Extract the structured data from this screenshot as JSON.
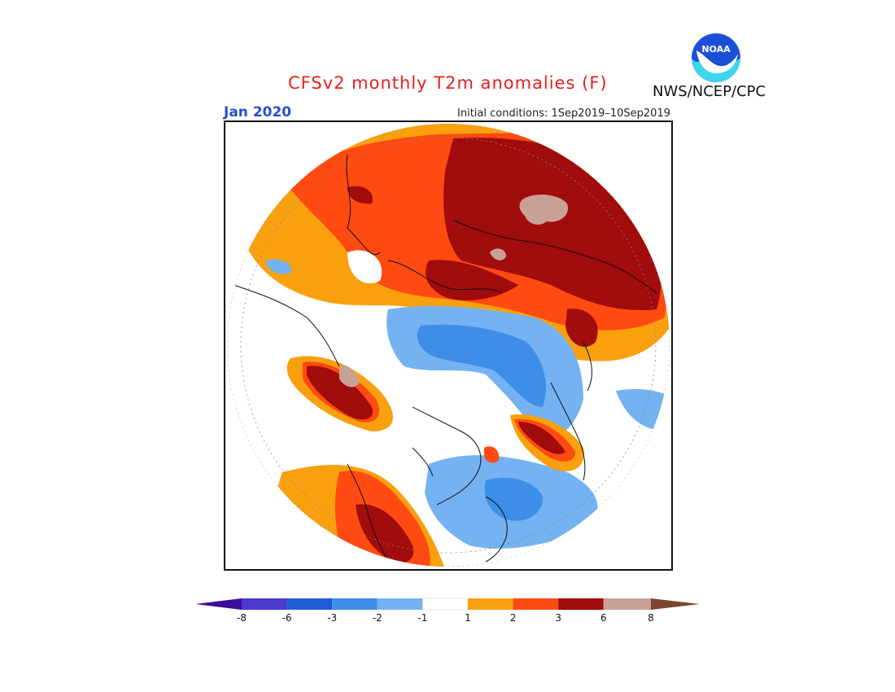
{
  "header": {
    "title": "CFSv2 monthly T2m anomalies (F)",
    "valid_month": "Jan 2020",
    "initial_conditions": "Initial conditions: 1Sep2019–10Sep2019",
    "agency": "NWS/NCEP/CPC",
    "logo_text": "NOAA"
  },
  "map": {
    "projection": "north-polar-stereographic",
    "variable": "2m temperature anomaly",
    "units": "F"
  },
  "colorbar": {
    "ticks": [
      "-8",
      "-6",
      "-3",
      "-2",
      "-1",
      "1",
      "2",
      "3",
      "6",
      "8"
    ],
    "colors": {
      "below_-8": "#3a0f9c",
      "-8_-6": "#4a3ad0",
      "-6_-3": "#1f5bd6",
      "-3_-2": "#3d8ee8",
      "-2_-1": "#74b2f2",
      "-1_1": "#ffffff",
      "1_2": "#f9a00f",
      "2_3": "#ff4a12",
      "3_6": "#a10c0c",
      "6_8": "#c9a095",
      "above_8": "#7a4632"
    }
  }
}
